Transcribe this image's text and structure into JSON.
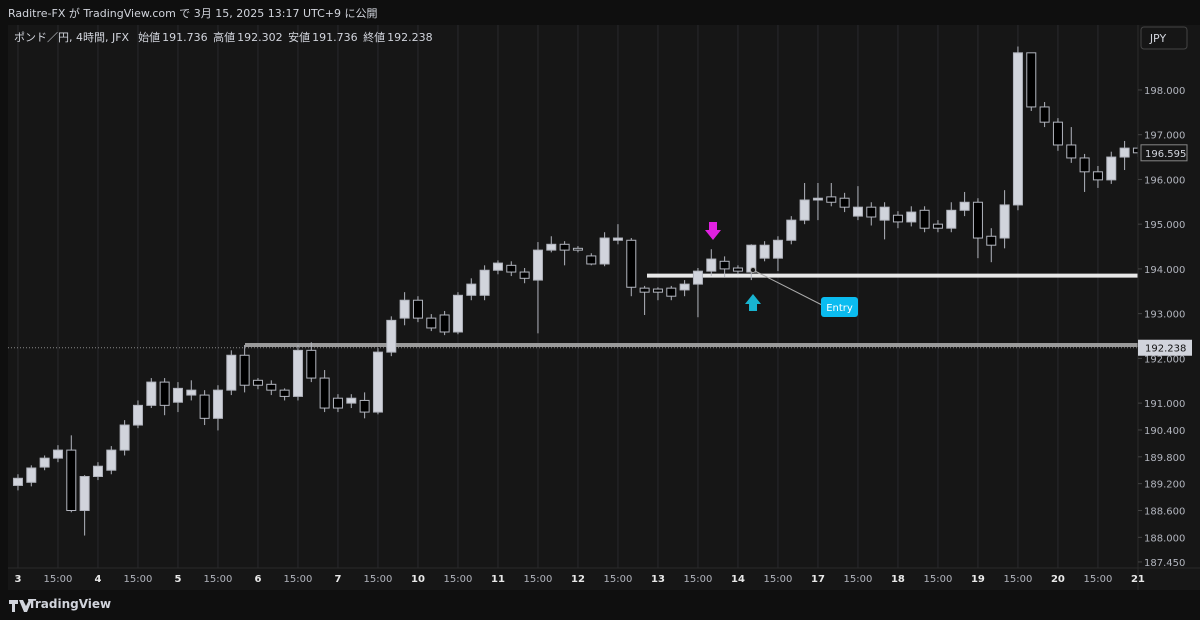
{
  "header": "Raditre-FX が TradingView.com で 3月 15, 2025 13:17 UTC+9 に公開",
  "footer": "TradingView",
  "chart_data": {
    "type": "candlestick",
    "symbol": "ポンド／円, 4時間, JFX",
    "open_label": "始値",
    "open": 191.736,
    "high_label": "高値",
    "high": 192.302,
    "low_label": "安値",
    "low": 191.736,
    "close_label": "終値",
    "close": 192.238,
    "currency": "JPY",
    "current_price": 196.595,
    "marker_price": 192.238,
    "annotation": "Entry",
    "hlines": [
      192.3,
      193.85
    ],
    "categories": [
      "3",
      null,
      null,
      "15:00",
      null,
      null,
      "4",
      null,
      null,
      "15:00",
      null,
      null,
      "5",
      null,
      null,
      "15:00",
      null,
      null,
      "6",
      null,
      null,
      "15:00",
      null,
      null,
      "7",
      null,
      null,
      "15:00",
      null,
      null,
      "10",
      null,
      null,
      "15:00",
      null,
      null,
      "11",
      null,
      null,
      "15:00",
      null,
      null,
      "12",
      null,
      null,
      "15:00",
      null,
      null,
      "13",
      null,
      null,
      "15:00",
      null,
      null,
      "14",
      null,
      null,
      "15:00",
      null,
      null,
      "17",
      null,
      null,
      "15:00",
      null,
      null,
      "18",
      null,
      null,
      "15:00",
      null,
      null,
      "19",
      null,
      null,
      "15:00",
      null,
      null,
      "20",
      null,
      null,
      "15:00",
      null,
      null,
      "21"
    ],
    "ohlc": [
      [
        189.16,
        189.41,
        189.05,
        189.32
      ],
      [
        189.23,
        189.61,
        189.14,
        189.55
      ],
      [
        189.57,
        189.83,
        189.5,
        189.77
      ],
      [
        189.77,
        190.06,
        189.68,
        189.95
      ],
      [
        189.95,
        190.28,
        188.56,
        188.6
      ],
      [
        188.6,
        189.39,
        188.04,
        189.36
      ],
      [
        189.36,
        189.68,
        189.28,
        189.59
      ],
      [
        189.5,
        190.04,
        189.41,
        189.95
      ],
      [
        189.95,
        190.62,
        189.83,
        190.51
      ],
      [
        190.51,
        191.06,
        190.44,
        190.95
      ],
      [
        190.95,
        191.56,
        190.89,
        191.47
      ],
      [
        191.47,
        191.56,
        190.73,
        190.95
      ],
      [
        191.02,
        191.47,
        190.8,
        191.33
      ],
      [
        191.18,
        191.51,
        191.06,
        191.29
      ],
      [
        191.18,
        191.29,
        190.51,
        190.66
      ],
      [
        190.66,
        191.4,
        190.39,
        191.29
      ],
      [
        191.29,
        192.18,
        191.18,
        192.07
      ],
      [
        192.07,
        192.3,
        191.24,
        191.4
      ],
      [
        191.51,
        191.56,
        191.31,
        191.4
      ],
      [
        191.42,
        191.51,
        191.18,
        191.29
      ],
      [
        191.29,
        191.33,
        191.06,
        191.15
      ],
      [
        191.15,
        192.3,
        191.06,
        192.18
      ],
      [
        192.18,
        192.36,
        191.47,
        191.56
      ],
      [
        191.56,
        191.74,
        190.8,
        190.89
      ],
      [
        191.11,
        191.2,
        190.8,
        190.89
      ],
      [
        191.0,
        191.2,
        190.89,
        191.11
      ],
      [
        191.06,
        191.24,
        190.66,
        190.8
      ],
      [
        190.8,
        192.23,
        190.75,
        192.14
      ],
      [
        192.14,
        192.94,
        192.05,
        192.85
      ],
      [
        192.9,
        193.48,
        192.74,
        193.3
      ],
      [
        193.3,
        193.39,
        192.81,
        192.9
      ],
      [
        192.9,
        192.99,
        192.61,
        192.68
      ],
      [
        192.97,
        193.06,
        192.52,
        192.59
      ],
      [
        192.59,
        193.48,
        192.54,
        193.41
      ],
      [
        193.41,
        193.79,
        193.3,
        193.66
      ],
      [
        193.41,
        194.08,
        193.3,
        193.97
      ],
      [
        193.97,
        194.19,
        193.88,
        194.13
      ],
      [
        194.08,
        194.17,
        193.84,
        193.93
      ],
      [
        193.93,
        194.02,
        193.68,
        193.79
      ],
      [
        193.75,
        194.6,
        192.56,
        194.42
      ],
      [
        194.42,
        194.73,
        194.37,
        194.55
      ],
      [
        194.55,
        194.62,
        194.08,
        194.42
      ],
      [
        194.46,
        194.51,
        194.37,
        194.42
      ],
      [
        194.29,
        194.35,
        194.08,
        194.11
      ],
      [
        194.11,
        194.82,
        194.06,
        194.69
      ],
      [
        194.64,
        195.0,
        194.55,
        194.69
      ],
      [
        194.64,
        194.69,
        193.39,
        193.59
      ],
      [
        193.57,
        193.62,
        192.97,
        193.48
      ],
      [
        193.55,
        193.59,
        193.3,
        193.48
      ],
      [
        193.57,
        193.62,
        193.3,
        193.39
      ],
      [
        193.53,
        193.75,
        193.39,
        193.66
      ],
      [
        193.66,
        194.02,
        192.92,
        193.95
      ],
      [
        193.95,
        194.44,
        193.84,
        194.22
      ],
      [
        194.17,
        194.28,
        193.82,
        194.0
      ],
      [
        194.02,
        194.08,
        193.88,
        193.95
      ],
      [
        193.93,
        194.55,
        193.75,
        194.53
      ],
      [
        194.24,
        194.62,
        194.17,
        194.53
      ],
      [
        194.24,
        194.73,
        193.95,
        194.64
      ],
      [
        194.64,
        195.18,
        194.55,
        195.09
      ],
      [
        195.09,
        195.92,
        195.0,
        195.54
      ],
      [
        195.54,
        195.92,
        195.09,
        195.58
      ],
      [
        195.61,
        195.92,
        195.4,
        195.49
      ],
      [
        195.58,
        195.7,
        195.27,
        195.38
      ],
      [
        195.18,
        195.85,
        195.09,
        195.38
      ],
      [
        195.38,
        195.49,
        194.97,
        195.16
      ],
      [
        195.09,
        195.49,
        194.66,
        195.38
      ],
      [
        195.2,
        195.29,
        194.91,
        195.05
      ],
      [
        195.05,
        195.4,
        194.95,
        195.27
      ],
      [
        195.31,
        195.4,
        194.82,
        194.91
      ],
      [
        195.0,
        195.09,
        194.82,
        194.91
      ],
      [
        194.91,
        195.49,
        194.82,
        195.31
      ],
      [
        195.31,
        195.72,
        195.18,
        195.49
      ],
      [
        195.49,
        195.58,
        194.24,
        194.69
      ],
      [
        194.73,
        194.91,
        194.15,
        194.53
      ],
      [
        194.69,
        195.76,
        194.46,
        195.43
      ],
      [
        195.43,
        198.97,
        195.31,
        198.83
      ],
      [
        198.83,
        198.83,
        197.53,
        197.62
      ],
      [
        197.62,
        197.73,
        197.17,
        197.28
      ],
      [
        197.28,
        197.37,
        196.64,
        196.77
      ],
      [
        196.77,
        197.17,
        196.37,
        196.48
      ],
      [
        196.48,
        196.57,
        195.72,
        196.17
      ],
      [
        196.17,
        196.3,
        195.81,
        195.99
      ],
      [
        195.99,
        196.62,
        195.9,
        196.5
      ],
      [
        196.5,
        196.86,
        196.21,
        196.7
      ],
      [
        196.7,
        196.77,
        196.5,
        196.595
      ]
    ],
    "ylim": [
      187.27,
      199.34
    ],
    "yticks": [
      {
        "value": 198,
        "label": "198.000"
      },
      {
        "value": 197,
        "label": "197.000"
      },
      {
        "value": 196,
        "label": "196.000"
      },
      {
        "value": 195,
        "label": "195.000"
      },
      {
        "value": 194,
        "label": "194.000"
      },
      {
        "value": 193,
        "label": "193.000"
      },
      {
        "value": 192,
        "label": "192.000"
      },
      {
        "value": 191,
        "label": "191.000"
      },
      {
        "value": 190.4,
        "label": "190.400"
      },
      {
        "value": 189.8,
        "label": "189.800"
      },
      {
        "value": 189.2,
        "label": "189.200"
      },
      {
        "value": 188.6,
        "label": "188.600"
      },
      {
        "value": 188,
        "label": "188.000"
      },
      {
        "value": 187.45,
        "label": "187.450"
      }
    ],
    "up_color": "#d1d4dc",
    "down_color": "#000000",
    "grid": true
  }
}
